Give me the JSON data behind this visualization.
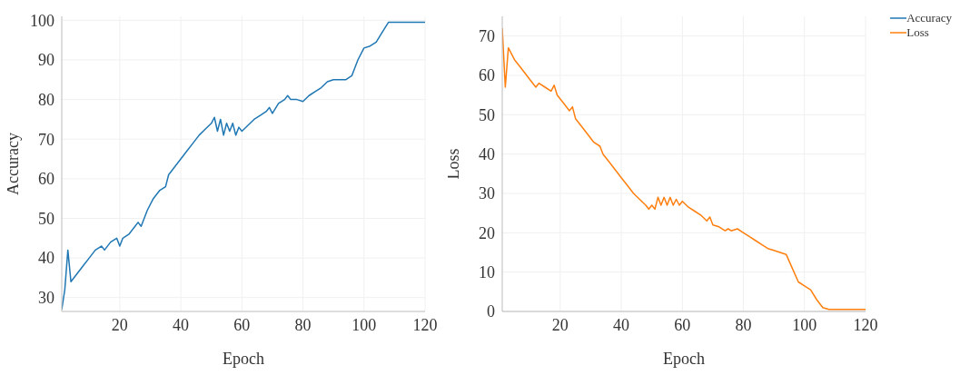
{
  "chart_data": [
    {
      "type": "line",
      "xlabel": "Epoch",
      "ylabel": "Accuracy",
      "xlim": [
        1,
        120
      ],
      "xticks": [
        20,
        40,
        60,
        80,
        100,
        120
      ],
      "ylim": [
        26.5,
        101
      ],
      "yticks": [
        30,
        40,
        50,
        60,
        70,
        80,
        90,
        100
      ],
      "grid": true,
      "legend": "top right",
      "marker": "none",
      "line_style": "solid",
      "series": [
        {
          "name": "Accuracy",
          "color": "#1f77b4",
          "x": [
            1,
            2,
            3,
            4,
            6,
            8,
            10,
            12,
            14,
            15,
            17,
            19,
            20,
            21,
            23,
            25,
            26,
            27,
            29,
            31,
            33,
            35,
            36,
            38,
            40,
            42,
            44,
            46,
            48,
            50,
            51,
            52,
            53,
            54,
            55,
            56,
            57,
            58,
            59,
            60,
            62,
            64,
            66,
            68,
            69,
            70,
            72,
            74,
            75,
            76,
            78,
            80,
            82,
            84,
            86,
            88,
            90,
            94,
            96,
            98,
            100,
            102,
            104,
            106,
            108,
            120
          ],
          "values": [
            27,
            32,
            42,
            34,
            36,
            38,
            40,
            42,
            43,
            42,
            44,
            45,
            43,
            45,
            46,
            48,
            49,
            48,
            52,
            55,
            57,
            58,
            61,
            63,
            65,
            67,
            69,
            71,
            72.5,
            74,
            75.5,
            72,
            75,
            71,
            74,
            72,
            74,
            71,
            73,
            72,
            73.5,
            75,
            76,
            77,
            78,
            76.5,
            79,
            80,
            81,
            80,
            80,
            79.5,
            81,
            82,
            83,
            84.5,
            85,
            85,
            86,
            90,
            93,
            93.5,
            94.5,
            97,
            99.5,
            99.5
          ]
        }
      ]
    },
    {
      "type": "line",
      "xlabel": "Epoch",
      "ylabel": "Loss",
      "xlim": [
        1,
        120
      ],
      "xticks": [
        20,
        40,
        60,
        80,
        100,
        120
      ],
      "ylim": [
        0,
        75
      ],
      "yticks": [
        0,
        10,
        20,
        30,
        40,
        50,
        60,
        70
      ],
      "grid": true,
      "legend": "top right",
      "marker": "none",
      "line_style": "solid",
      "series": [
        {
          "name": "Loss",
          "color": "#ff7f0e",
          "x": [
            1,
            2,
            3,
            5,
            7,
            9,
            11,
            12,
            13,
            15,
            17,
            18,
            19,
            21,
            23,
            24,
            25,
            27,
            29,
            31,
            33,
            34,
            36,
            38,
            40,
            42,
            44,
            46,
            48,
            49,
            50,
            51,
            52,
            53,
            54,
            55,
            56,
            57,
            58,
            59,
            60,
            62,
            64,
            66,
            68,
            69,
            70,
            72,
            74,
            75,
            76,
            78,
            80,
            82,
            84,
            86,
            88,
            90,
            92,
            94,
            96,
            98,
            100,
            102,
            104,
            106,
            108,
            120
          ],
          "values": [
            72,
            57,
            67,
            64,
            62,
            60,
            58,
            57,
            58,
            57,
            56,
            57.5,
            55,
            53,
            51,
            52,
            49,
            47,
            45,
            43,
            42,
            40,
            38,
            36,
            34,
            32,
            30,
            28.5,
            27,
            26,
            27,
            26,
            29,
            27,
            29,
            27,
            29,
            27,
            28.5,
            27,
            28,
            26.5,
            25.5,
            24.5,
            23,
            24,
            22,
            21.5,
            20.5,
            21,
            20.5,
            21,
            20,
            19,
            18,
            17,
            16,
            15.5,
            15,
            14.5,
            11,
            7.5,
            6.5,
            5.5,
            3,
            1,
            0.5,
            0.5
          ]
        }
      ]
    }
  ]
}
